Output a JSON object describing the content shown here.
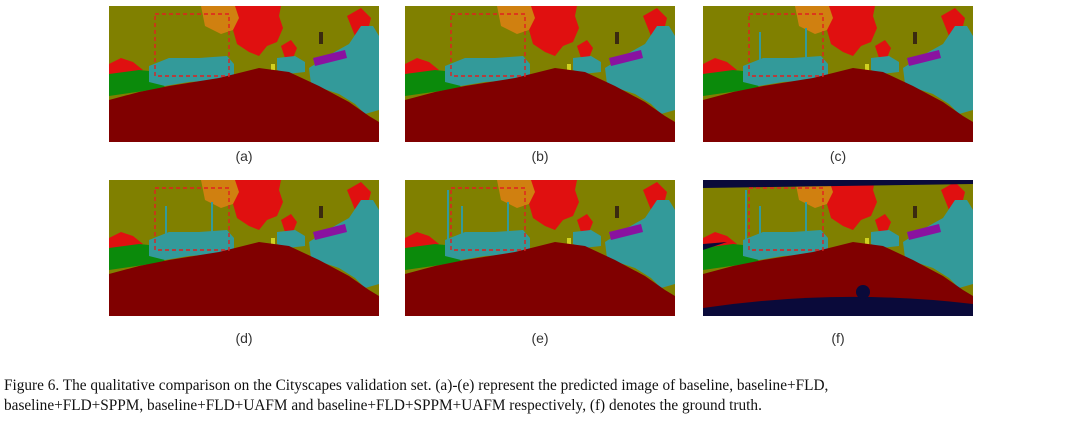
{
  "figure": {
    "panels": [
      {
        "label": "(a)",
        "variant": "a"
      },
      {
        "label": "(b)",
        "variant": "b"
      },
      {
        "label": "(c)",
        "variant": "c"
      },
      {
        "label": "(d)",
        "variant": "d"
      },
      {
        "label": "(e)",
        "variant": "e"
      },
      {
        "label": "(f)",
        "variant": "f"
      }
    ],
    "caption_line1": "Figure 6.  The qualitative comparison on the Cityscapes validation set.  (a)-(e) represent the predicted image of baseline, baseline+FLD,",
    "caption_line2": "baseline+FLD+SPPM, baseline+FLD+UAFM and baseline+FLD+SPPM+UAFM respectively, (f) denotes the ground truth.",
    "colors": {
      "road": "#800000",
      "vegetation": "#808000",
      "car": "#339a9a",
      "tree_red": "#e01010",
      "building_orange": "#d08010",
      "sidewalk_green": "#0b8a0b",
      "sign_purple": "#8a12a0",
      "void_navy": "#0a0a3a",
      "highlight_box": "#e02020"
    }
  }
}
